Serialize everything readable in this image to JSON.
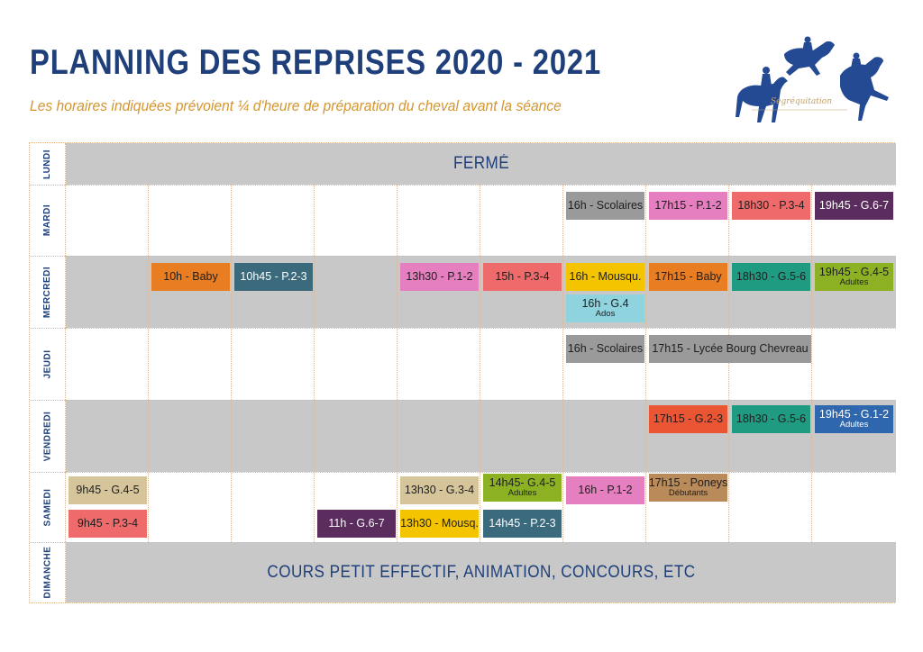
{
  "header": {
    "title": "PLANNING DES REPRISES 2020 - 2021",
    "subtitle": "Les horaires indiquées prévoient ¼ d'heure de préparation du cheval avant la séance",
    "logo_text": "Segréquitation"
  },
  "days": {
    "lundi": "LUNDI",
    "mardi": "MARDI",
    "mercredi": "MERCREDI",
    "jeudi": "JEUDI",
    "vendredi": "VENDREDI",
    "samedi": "SAMEDI",
    "dimanche": "DIMANCHE"
  },
  "banners": {
    "lundi": "FERMÉ",
    "dimanche": "COURS PETIT EFFECTIF, ANIMATION, CONCOURS, ETC"
  },
  "colors": {
    "title": "#1f3f7a",
    "subtitle": "#d4952f",
    "gray_row": "#c8c8c8"
  },
  "sessions": {
    "mardi": [
      {
        "label": "16h - Scolaires",
        "color": "#9a9a9a"
      },
      {
        "label": "17h15 - P.1-2",
        "color": "#e67fbf"
      },
      {
        "label": "18h30 - P.3-4",
        "color": "#ef6b6b"
      },
      {
        "label": "19h45 - G.6-7",
        "color": "#5b2d5e"
      }
    ],
    "mercredi": [
      {
        "label": "10h - Baby",
        "color": "#e87d22"
      },
      {
        "label": "10h45 - P.2-3",
        "color": "#3a6a7c"
      },
      {
        "label": "13h30 - P.1-2",
        "color": "#e67fbf"
      },
      {
        "label": "15h - P.3-4",
        "color": "#ef6b6b"
      },
      {
        "label": "16h - Mousqu.",
        "color": "#f5c400"
      },
      {
        "label": "17h15 - Baby",
        "color": "#e87d22"
      },
      {
        "label": "18h30 - G.5-6",
        "color": "#1f9b82"
      },
      {
        "label": "19h45 - G.4-5",
        "sub": "Adultes",
        "color": "#8cb224"
      },
      {
        "label": "16h - G.4",
        "sub": "Ados",
        "color": "#8fd3de"
      }
    ],
    "jeudi": [
      {
        "label": "16h - Scolaires",
        "color": "#9a9a9a"
      },
      {
        "label": "17h15 - Lycée Bourg Chevreau",
        "color": "#9a9a9a"
      }
    ],
    "vendredi": [
      {
        "label": "17h15 - G.2-3",
        "color": "#ea5533"
      },
      {
        "label": "18h30 - G.5-6",
        "color": "#1f9b82"
      },
      {
        "label": "19h45 - G.1-2",
        "sub": "Adultes",
        "color": "#2e67ad"
      }
    ],
    "samedi": [
      {
        "label": "9h45 - G.4-5",
        "color": "#d6c49a"
      },
      {
        "label": "13h30 - G.3-4",
        "color": "#d6c49a"
      },
      {
        "label": "14h45- G.4-5",
        "sub": "Adultes",
        "color": "#8cb224"
      },
      {
        "label": "16h - P.1-2",
        "color": "#e67fbf"
      },
      {
        "label": "17h15 - Poneys",
        "sub": "Débutants",
        "color": "#b98a5a"
      },
      {
        "label": "9h45 - P.3-4",
        "color": "#ef6b6b"
      },
      {
        "label": "11h - G.6-7",
        "color": "#5b2d5e"
      },
      {
        "label": "13h30 - Mousq.",
        "color": "#f5c400"
      },
      {
        "label": "14h45 - P.2-3",
        "color": "#3a6a7c"
      }
    ]
  }
}
